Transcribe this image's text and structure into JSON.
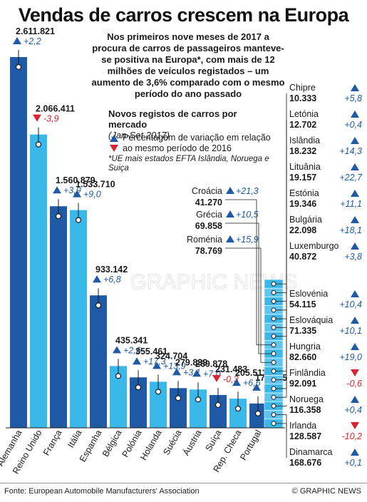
{
  "title": "Vendas de carros crescem na Europa",
  "intro": "Nos primeiros nove meses de 2017 a procura de carros de passageiros manteve-se positiva na Europa*, com mais de 12 milhões de veículos registados – um aumento de 3,6% comparado com o mesmo período do ano passado",
  "subhead": "Novos registos de carros por mercado",
  "subhead_period": "(Jan-Set 2017)",
  "legend": {
    "up": "Percentagem de variação em relação ao mesmo período de 2016",
    "note": "*UE mais estados EFTA Islândia, Noruega e Suiça"
  },
  "source": "Fonte: European Automobile Manufacturers' Association",
  "credit": "© GRAPHIC NEWS",
  "watermark": "GRAPHIC NEWS",
  "colors": {
    "bar_dark": "#1f5aa6",
    "bar_light": "#3bb8ea",
    "up": "#1f5aa6",
    "down": "#d9232e"
  },
  "chart_data": {
    "type": "bar",
    "ylim": [
      0,
      2611821
    ],
    "categories": [
      "Alemanha",
      "Reino Unido",
      "França",
      "Itália",
      "Espanha",
      "Bélgica",
      "Polónia",
      "Holanda",
      "Suécia",
      "Áustria",
      "Suíça",
      "Rep. Checa",
      "Portugal"
    ],
    "values": [
      2611821,
      2066411,
      1560879,
      1533710,
      933142,
      435341,
      355461,
      324704,
      279839,
      269878,
      231483,
      205511,
      171555
    ],
    "value_labels": [
      "2.611.821",
      "2.066.411",
      "1.560.879",
      "1.533.710",
      "933.142",
      "435.341",
      "355.461",
      "324.704",
      "279.839",
      "269.878",
      "231.483",
      "205.511",
      "171.555"
    ],
    "changes": [
      "+2,2",
      "-3,9",
      "+3,9",
      "+9,0",
      "+6,8",
      "+2,6",
      "+17,3",
      "+13,9",
      "+3,1",
      "+7,0",
      "-0,3",
      "+6,6",
      "+7,9"
    ],
    "small_markets": [
      {
        "name": "Chipre",
        "value": "10.333",
        "change": "+5,8"
      },
      {
        "name": "Letónia",
        "value": "12.702",
        "change": "+0,4"
      },
      {
        "name": "Islândia",
        "value": "18.232",
        "change": "+14,3"
      },
      {
        "name": "Lituânia",
        "value": "19.157",
        "change": "+22,7"
      },
      {
        "name": "Estónia",
        "value": "19.346",
        "change": "+11,1"
      },
      {
        "name": "Bulgária",
        "value": "22.098",
        "change": "+18,1"
      },
      {
        "name": "Luxemburgo",
        "value": "40.872",
        "change": "+3,8"
      },
      {
        "name": "Croácia",
        "value": "41.270",
        "change": "+21,3"
      },
      {
        "name": "Grécia",
        "value": "69.858",
        "change": "+10,5"
      },
      {
        "name": "Roménia",
        "value": "78.769",
        "change": "+15,9"
      },
      {
        "name": "Eslovénia",
        "value": "54.115",
        "change": "+10,4"
      },
      {
        "name": "Eslováquia",
        "value": "71.335",
        "change": "+10,1"
      },
      {
        "name": "Hungria",
        "value": "82.660",
        "change": "+19,0"
      },
      {
        "name": "Finlândia",
        "value": "92.091",
        "change": "-0,6"
      },
      {
        "name": "Noruega",
        "value": "116.358",
        "change": "+0,4"
      },
      {
        "name": "Irlanda",
        "value": "128.587",
        "change": "-10,2"
      },
      {
        "name": "Dinamarca",
        "value": "168.676",
        "change": "+0,1"
      }
    ]
  }
}
